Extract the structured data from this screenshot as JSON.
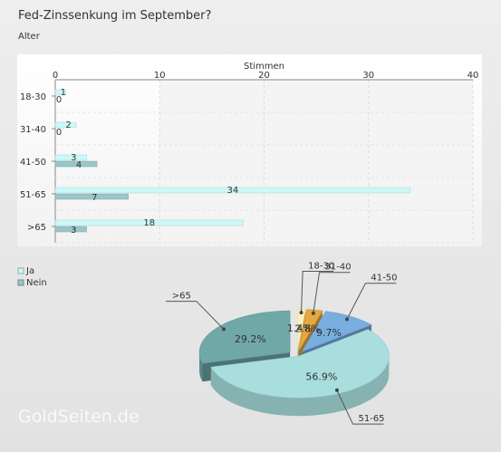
{
  "title": "Fed-Zinssenkung im September?",
  "subtitle": "Alter",
  "watermark": "GoldSeiten.de",
  "chart_data": [
    {
      "type": "bar",
      "orientation": "horizontal",
      "xlabel": "Stimmen",
      "xlim": [
        0,
        40
      ],
      "ticks": [
        0,
        10,
        20,
        30,
        40
      ],
      "grid": true,
      "legend": "bottom-left",
      "categories": [
        "18-30",
        "31-40",
        "41-50",
        "51-65",
        ">65"
      ],
      "series": [
        {
          "name": "Ja",
          "values": [
            1,
            2,
            3,
            34,
            18
          ],
          "color": "#ccf8f8"
        },
        {
          "name": "Nein",
          "values": [
            0,
            0,
            4,
            7,
            3
          ],
          "color": "#9ac6c6"
        }
      ]
    },
    {
      "type": "pie",
      "style": "3d-exploded",
      "labels": [
        "18-30",
        "31-40",
        "41-50",
        "51-65",
        ">65"
      ],
      "values": [
        1.4,
        2.8,
        9.7,
        56.9,
        29.2
      ],
      "value_labels": [
        "1.4%",
        "2.8%",
        "9.7%",
        "56.9%",
        "29.2%"
      ],
      "colors": [
        "#fff0b8",
        "#e6a840",
        "#78aee0",
        "#a8dede",
        "#70a8a8"
      ]
    }
  ]
}
